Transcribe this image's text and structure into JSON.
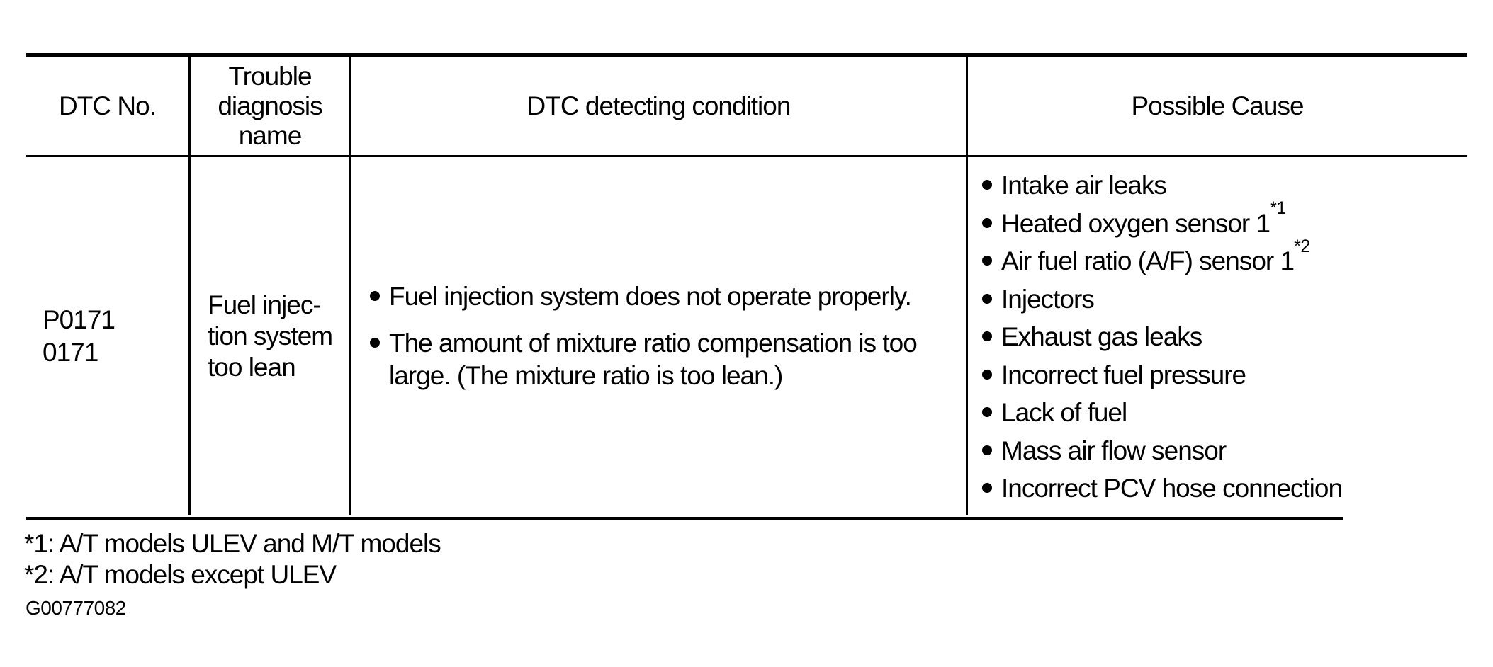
{
  "table": {
    "headers": {
      "dtc_no": "DTC No.",
      "trouble_name_lines": [
        "Trouble",
        "diagnosis",
        "name"
      ],
      "detecting_condition": "DTC detecting condition",
      "possible_cause": "Possible Cause"
    },
    "row": {
      "dtc_codes": [
        "P0171",
        "0171"
      ],
      "trouble_name_lines": [
        "Fuel injec-",
        "tion system",
        "too lean"
      ],
      "detecting_conditions": [
        "Fuel injection system does not operate properly.",
        "The amount of mixture ratio compensation is too large. (The mixture ratio is too lean.)"
      ],
      "possible_causes": [
        {
          "text": "Intake air leaks",
          "sup": ""
        },
        {
          "text": "Heated oxygen sensor 1",
          "sup": "*1"
        },
        {
          "text": "Air fuel ratio (A/F) sensor 1",
          "sup": "*2"
        },
        {
          "text": "Injectors",
          "sup": ""
        },
        {
          "text": "Exhaust gas leaks",
          "sup": ""
        },
        {
          "text": "Incorrect fuel pressure",
          "sup": ""
        },
        {
          "text": "Lack of fuel",
          "sup": ""
        },
        {
          "text": "Mass air flow sensor",
          "sup": ""
        },
        {
          "text": "Incorrect PCV hose connection",
          "sup": ""
        }
      ]
    }
  },
  "footnotes": [
    "*1: A/T models ULEV and M/T models",
    "*2: A/T models except ULEV"
  ],
  "figure_id": "G00777082",
  "colors": {
    "ink": "#000000",
    "paper": "#ffffff"
  }
}
